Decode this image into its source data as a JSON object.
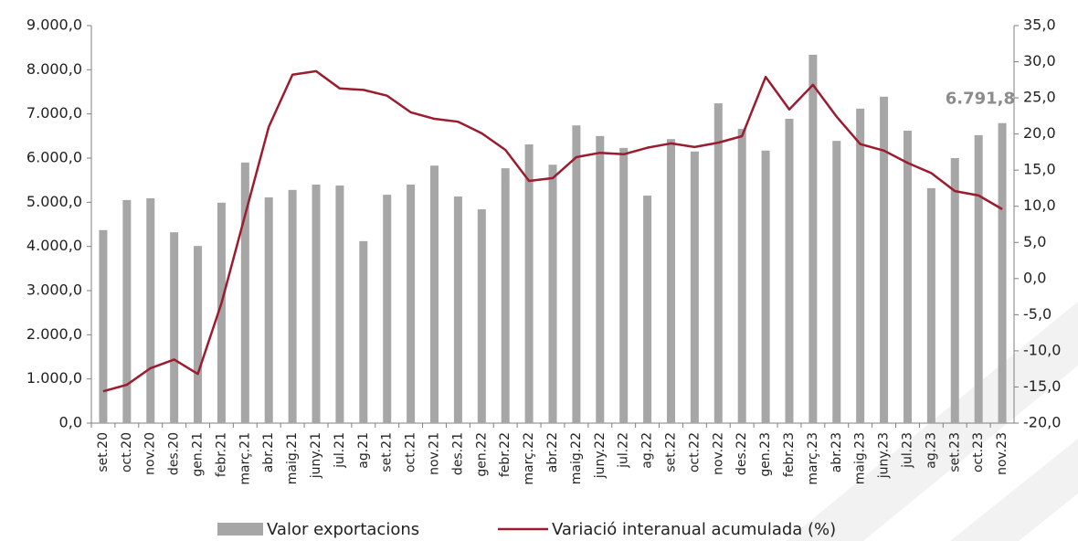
{
  "chart_data": {
    "type": "bar-line",
    "categories": [
      "set.20",
      "oct.20",
      "nov.20",
      "des.20",
      "gen.21",
      "febr.21",
      "març.21",
      "abr.21",
      "maig.21",
      "juny.21",
      "jul.21",
      "ag.21",
      "set.21",
      "oct.21",
      "nov.21",
      "des.21",
      "gen.22",
      "febr.22",
      "març.22",
      "abr.22",
      "maig.22",
      "juny.22",
      "jul.22",
      "ag.22",
      "set.22",
      "oct.22",
      "nov.22",
      "des.22",
      "gen.23",
      "febr.23",
      "març.23",
      "abr.23",
      "maig.23",
      "juny.23",
      "jul.23",
      "ag.23",
      "set.23",
      "oct.23",
      "nov.23"
    ],
    "series": [
      {
        "name": "Valor exportacions",
        "color": "#a6a6a6",
        "axis": "y",
        "values": [
          4370,
          5050,
          5090,
          4320,
          4010,
          4990,
          5900,
          5110,
          5280,
          5400,
          5380,
          4120,
          5170,
          5400,
          5830,
          5130,
          4840,
          5770,
          6310,
          5850,
          6740,
          6500,
          6230,
          5150,
          6430,
          6150,
          7240,
          6660,
          6170,
          6890,
          8340,
          6390,
          7120,
          7390,
          6620,
          5320,
          6000,
          6520,
          6791.8
        ],
        "value_labels": [
          null,
          null,
          null,
          null,
          null,
          null,
          null,
          null,
          null,
          null,
          null,
          null,
          null,
          null,
          null,
          null,
          null,
          null,
          null,
          null,
          null,
          null,
          null,
          null,
          null,
          null,
          null,
          null,
          null,
          null,
          null,
          null,
          null,
          null,
          null,
          null,
          null,
          null,
          "6.791,8"
        ]
      },
      {
        "name": "Variació interanual acumulada (%)",
        "color": "#9b1c2e",
        "axis": "y2",
        "values": [
          -15.6,
          -14.7,
          -12.4,
          -11.2,
          -13.2,
          -3.4,
          8.8,
          21.0,
          28.2,
          28.7,
          26.3,
          26.1,
          25.3,
          23.0,
          22.1,
          21.7,
          20.1,
          17.8,
          13.5,
          13.9,
          16.8,
          17.4,
          17.2,
          18.1,
          18.7,
          18.2,
          18.8,
          19.7,
          27.9,
          23.4,
          26.8,
          22.4,
          18.6,
          17.7,
          16.0,
          14.6,
          12.1,
          11.5,
          9.6
        ]
      }
    ],
    "ylim": [
      0,
      9000
    ],
    "yticks": [
      {
        "value": 0,
        "label": "0,0"
      },
      {
        "value": 1000,
        "label": "1.000,0"
      },
      {
        "value": 2000,
        "label": "2.000,0"
      },
      {
        "value": 3000,
        "label": "3.000,0"
      },
      {
        "value": 4000,
        "label": "4.000,0"
      },
      {
        "value": 5000,
        "label": "5.000,0"
      },
      {
        "value": 6000,
        "label": "6.000,0"
      },
      {
        "value": 7000,
        "label": "7.000,0"
      },
      {
        "value": 8000,
        "label": "8.000,0"
      },
      {
        "value": 9000,
        "label": "9.000,0"
      }
    ],
    "y2lim": [
      -20,
      35
    ],
    "y2ticks": [
      {
        "value": -20,
        "label": "-20,0"
      },
      {
        "value": -15,
        "label": "-15,0"
      },
      {
        "value": -10,
        "label": "-10,0"
      },
      {
        "value": -5,
        "label": "-5,0"
      },
      {
        "value": 0,
        "label": "0,0"
      },
      {
        "value": 5,
        "label": "5,0"
      },
      {
        "value": 10,
        "label": "10,0"
      },
      {
        "value": 15,
        "label": "15,0"
      },
      {
        "value": 20,
        "label": "20,0"
      },
      {
        "value": 25,
        "label": "25,0"
      },
      {
        "value": 30,
        "label": "30,0"
      },
      {
        "value": 35,
        "label": "35,0"
      }
    ],
    "grid": false,
    "legend": "bottom"
  }
}
